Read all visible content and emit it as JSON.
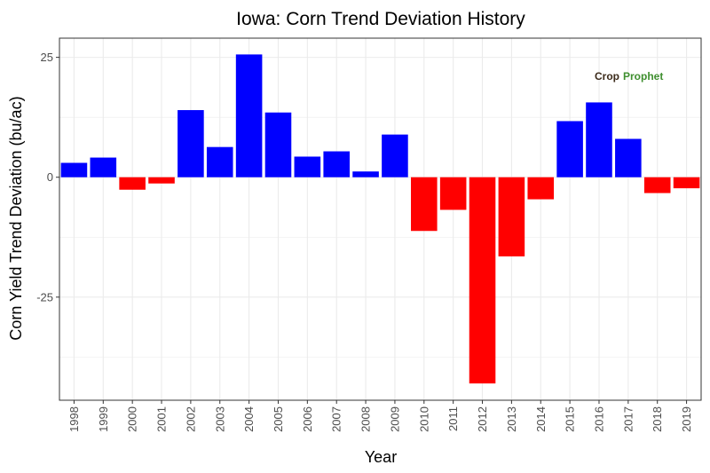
{
  "chart_data": {
    "type": "bar",
    "title": "Iowa: Corn Trend Deviation History",
    "xlabel": "Year",
    "ylabel": "Corn Yield Trend Deviation (bu/ac)",
    "categories": [
      "1998",
      "1999",
      "2000",
      "2001",
      "2002",
      "2003",
      "2004",
      "2005",
      "2006",
      "2007",
      "2008",
      "2009",
      "2010",
      "2011",
      "2012",
      "2013",
      "2014",
      "2015",
      "2016",
      "2017",
      "2018",
      "2019"
    ],
    "values": [
      3.0,
      4.1,
      -2.6,
      -1.3,
      14.0,
      6.3,
      25.6,
      13.5,
      4.3,
      5.4,
      1.2,
      8.9,
      -11.2,
      -6.8,
      -43.0,
      -16.5,
      -4.6,
      11.7,
      15.6,
      8.0,
      -3.3,
      -2.3
    ],
    "ylim": [
      -46.5,
      29.0
    ],
    "yticks": [
      25,
      0,
      -25
    ],
    "ytick_labels": [
      "25",
      "0",
      "-25"
    ],
    "colors": {
      "positive": "#0000ff",
      "negative": "#ff0000",
      "grid": "#ebebeb",
      "border": "#333333"
    },
    "grid": true,
    "legend": "none",
    "logo": {
      "part1": "Crop",
      "part2": "Prophet"
    }
  }
}
